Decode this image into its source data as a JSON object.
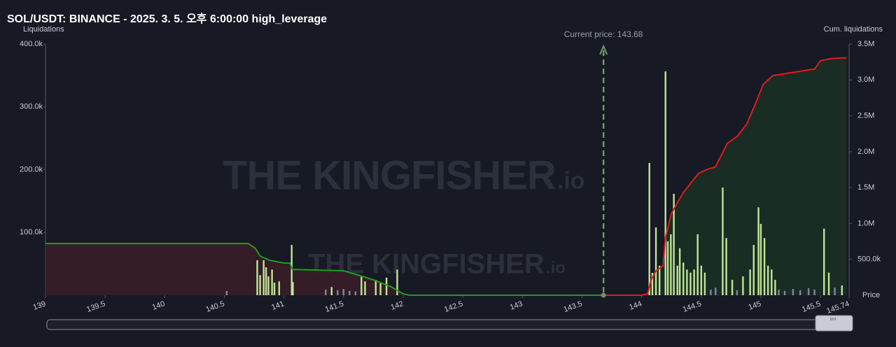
{
  "chart_data": {
    "type": "bar",
    "title": "SOL/USDT: BINANCE - 2025. 3. 5. 오후 6:00:00 high_leverage",
    "y_label": "Liquidations",
    "y2_label": "Cum. liquidations",
    "x_label": "Price",
    "watermark": "THE KINGFISHER",
    "watermark_suffix": ".io",
    "current_price": 143.68,
    "current_price_label": "Current price: 143.68",
    "xlim": [
      139,
      145.74
    ],
    "xticks": [
      139,
      139.5,
      140,
      140.5,
      141,
      141.5,
      142,
      142.5,
      143,
      143.5,
      144,
      144.5,
      145,
      145.5,
      145.74
    ],
    "ylim": [
      0,
      400000
    ],
    "yticks": [
      {
        "value": 100000,
        "label": "100.0k"
      },
      {
        "value": 200000,
        "label": "200.0k"
      },
      {
        "value": 300000,
        "label": "300.0k"
      },
      {
        "value": 400000,
        "label": "400.0k"
      }
    ],
    "y2lim": [
      0,
      3500000
    ],
    "y2ticks": [
      {
        "value": 500000,
        "label": "500.0k"
      },
      {
        "value": 1000000,
        "label": "1.0M"
      },
      {
        "value": 1500000,
        "label": "1.5M"
      },
      {
        "value": 2000000,
        "label": "2.0M"
      },
      {
        "value": 2500000,
        "label": "2.5M"
      },
      {
        "value": 3000000,
        "label": "3.0M"
      },
      {
        "value": 3500000,
        "label": "3.5M"
      }
    ],
    "grid": false,
    "series": [
      {
        "type": "bar",
        "color": "#bfe596",
        "x": [
          140.776,
          140.8,
          140.83,
          140.85,
          140.87,
          140.9,
          140.92,
          140.96,
          141.065,
          141.075,
          141.4,
          141.65,
          141.68,
          141.77,
          141.81,
          141.86,
          141.95,
          144.065,
          144.09,
          144.12,
          144.15,
          144.2,
          144.22,
          144.245,
          144.27,
          144.3,
          144.32,
          144.35,
          144.38,
          144.41,
          144.44,
          144.47,
          144.5,
          144.53,
          144.68,
          144.71,
          144.76,
          144.85,
          144.91,
          144.94,
          144.98,
          145.0,
          145.03,
          145.06,
          145.09,
          145.12,
          145.53,
          145.57,
          145.68
        ],
        "values": [
          55700,
          32000,
          55700,
          44600,
          30000,
          41000,
          20000,
          22000,
          80000,
          21000,
          13000,
          30000,
          22000,
          24500,
          19000,
          28000,
          41000,
          210500,
          35600,
          108000,
          47000,
          356500,
          86000,
          97000,
          161500,
          47000,
          75000,
          52000,
          41000,
          36000,
          41000,
          97000,
          47000,
          36000,
          171500,
          91000,
          24500,
          30000,
          41000,
          80000,
          140000,
          113600,
          91000,
          47000,
          41000,
          24500,
          106000,
          36000,
          15600
        ]
      },
      {
        "type": "bar",
        "color": "#8284a6",
        "x": [
          140.52,
          141.35,
          141.45,
          141.5,
          141.55,
          141.6,
          144.58,
          144.62,
          144.8,
          145.15,
          145.2,
          145.27,
          145.33,
          145.4,
          145.45,
          145.62
        ],
        "values": [
          6700,
          9000,
          8000,
          10000,
          7000,
          6000,
          9000,
          12000,
          8000,
          9000,
          7000,
          10000,
          8000,
          11000,
          9000,
          12000
        ]
      },
      {
        "type": "line",
        "axis": "y2",
        "color": "#1f9d1f",
        "fill": "#3a1e27",
        "x": [
          139,
          140.56,
          140.7,
          140.76,
          140.8,
          140.88,
          141.0,
          141.05,
          141.07,
          141.5,
          141.6,
          141.75,
          141.9,
          142.0,
          142.05,
          143.68
        ],
        "values": [
          720000,
          720000,
          720000,
          653000,
          546000,
          487000,
          448000,
          448000,
          360000,
          341000,
          292000,
          214000,
          117000,
          19000,
          0,
          0
        ]
      },
      {
        "type": "line",
        "axis": "y2",
        "color": "#e01b1b",
        "fill": "#1b3125",
        "x": [
          143.68,
          144.0,
          144.05,
          144.08,
          144.12,
          144.18,
          144.2,
          144.25,
          144.3,
          144.35,
          144.42,
          144.48,
          144.55,
          144.62,
          144.65,
          144.72,
          144.8,
          144.88,
          144.95,
          145.02,
          145.1,
          145.25,
          145.4,
          145.45,
          145.5,
          145.6,
          145.72
        ],
        "values": [
          0,
          0,
          19500,
          214000,
          341000,
          409000,
          800000,
          1140000,
          1290000,
          1430000,
          1580000,
          1700000,
          1755000,
          1790000,
          1890000,
          2120000,
          2210000,
          2380000,
          2650000,
          2940000,
          3060000,
          3100000,
          3140000,
          3150000,
          3270000,
          3300000,
          3310000
        ]
      }
    ]
  }
}
